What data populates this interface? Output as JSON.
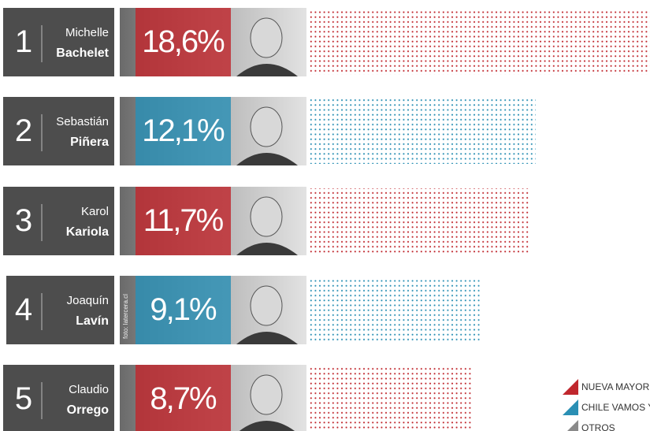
{
  "chart_data": {
    "type": "bar",
    "ranks": [
      1,
      2,
      3,
      4,
      5
    ],
    "first_names": [
      "Michelle",
      "Sebastián",
      "Karol",
      "Joaquín",
      "Claudio"
    ],
    "categories": [
      "Bachelet",
      "Piñera",
      "Kariola",
      "Lavín",
      "Orrego"
    ],
    "values": [
      18.6,
      12.1,
      11.7,
      9.1,
      8.7
    ],
    "value_labels": [
      "18,6%",
      "12,1%",
      "11,7%",
      "9,1%",
      "8,7%"
    ],
    "colors": [
      "#c0272d",
      "#2a8fb4",
      "#c0272d",
      "#2a8fb4",
      "#c0272d"
    ],
    "photo_credit": "foto: latercera.cl",
    "legend": [
      {
        "name": "NUEVA MAYORÍA",
        "color": "#c0272d"
      },
      {
        "name": "CHILE VAMOS Y A",
        "color": "#2a8fb4"
      },
      {
        "name": "OTROS",
        "color": "#8a8a8a"
      }
    ]
  }
}
